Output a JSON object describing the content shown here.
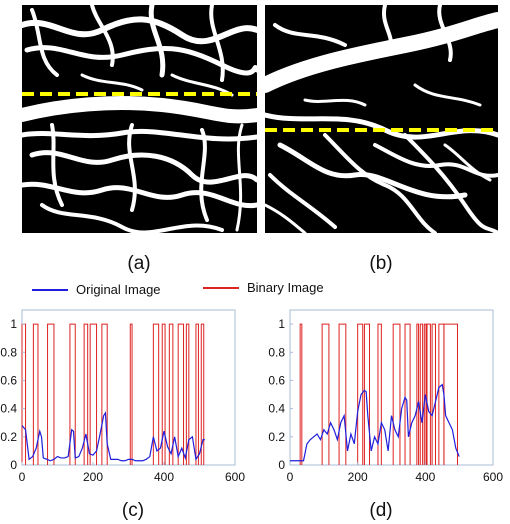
{
  "captions": {
    "a": "(a)",
    "b": "(b)",
    "c": "(c)",
    "d": "(d)"
  },
  "legend": {
    "original": {
      "label": "Original Image",
      "color": "#1f1fdd"
    },
    "binary": {
      "label": "Binary Image",
      "color": "#dd2222"
    }
  },
  "marker_color": "#ffff00",
  "chart_data": [
    {
      "type": "line",
      "xlim": [
        0,
        600
      ],
      "ylim": [
        0,
        1.1
      ],
      "xticks": [
        0,
        200,
        400,
        600
      ],
      "yticks": [
        0,
        0.2,
        0.4,
        0.6,
        0.8,
        1
      ],
      "grid": false,
      "series": [
        {
          "name": "Original Image",
          "x": [
            0,
            10,
            20,
            30,
            40,
            50,
            55,
            60,
            70,
            80,
            90,
            100,
            110,
            120,
            130,
            140,
            145,
            150,
            160,
            170,
            180,
            190,
            200,
            210,
            220,
            230,
            235,
            240,
            250,
            260,
            270,
            280,
            290,
            300,
            310,
            320,
            330,
            340,
            350,
            360,
            370,
            380,
            390,
            400,
            410,
            420,
            430,
            440,
            450,
            460,
            470,
            480,
            490,
            500,
            510,
            515
          ],
          "y": [
            0.28,
            0.25,
            0.04,
            0.06,
            0.12,
            0.24,
            0.2,
            0.05,
            0.04,
            0.03,
            0.04,
            0.06,
            0.05,
            0.05,
            0.06,
            0.25,
            0.24,
            0.05,
            0.06,
            0.12,
            0.22,
            0.08,
            0.07,
            0.1,
            0.22,
            0.35,
            0.37,
            0.15,
            0.04,
            0.04,
            0.04,
            0.03,
            0.03,
            0.04,
            0.04,
            0.03,
            0.03,
            0.03,
            0.04,
            0.06,
            0.2,
            0.1,
            0.12,
            0.24,
            0.13,
            0.08,
            0.2,
            0.06,
            0.12,
            0.05,
            0.18,
            0.2,
            0.04,
            0.08,
            0.18,
            0.18
          ]
        },
        {
          "name": "Binary Image",
          "pulses": [
            [
              0,
              10
            ],
            [
              32,
              45
            ],
            [
              72,
              90
            ],
            [
              135,
              150
            ],
            [
              175,
              185
            ],
            [
              192,
              210
            ],
            [
              225,
              240
            ],
            [
              305,
              310
            ],
            [
              370,
              385
            ],
            [
              395,
              403
            ],
            [
              415,
              425
            ],
            [
              440,
              455
            ],
            [
              463,
              470
            ],
            [
              490,
              497
            ],
            [
              505,
              512
            ]
          ]
        }
      ]
    },
    {
      "type": "line",
      "xlim": [
        0,
        600
      ],
      "ylim": [
        0,
        1.1
      ],
      "xticks": [
        0,
        200,
        400,
        600
      ],
      "yticks": [
        0,
        0.2,
        0.4,
        0.6,
        0.8,
        1
      ],
      "grid": false,
      "series": [
        {
          "name": "Original Image",
          "x": [
            0,
            20,
            40,
            50,
            60,
            70,
            80,
            90,
            100,
            110,
            120,
            130,
            140,
            150,
            160,
            170,
            180,
            190,
            200,
            210,
            220,
            225,
            230,
            240,
            250,
            260,
            270,
            280,
            290,
            300,
            310,
            320,
            330,
            340,
            345,
            350,
            360,
            370,
            380,
            390,
            400,
            410,
            420,
            430,
            440,
            450,
            455,
            460,
            470,
            480,
            490,
            500
          ],
          "y": [
            0.03,
            0.03,
            0.03,
            0.15,
            0.18,
            0.2,
            0.22,
            0.18,
            0.25,
            0.22,
            0.3,
            0.25,
            0.18,
            0.3,
            0.35,
            0.1,
            0.22,
            0.15,
            0.38,
            0.5,
            0.53,
            0.52,
            0.35,
            0.1,
            0.2,
            0.15,
            0.3,
            0.25,
            0.1,
            0.35,
            0.25,
            0.2,
            0.4,
            0.48,
            0.46,
            0.2,
            0.3,
            0.35,
            0.45,
            0.3,
            0.5,
            0.38,
            0.35,
            0.45,
            0.55,
            0.57,
            0.5,
            0.35,
            0.3,
            0.25,
            0.12,
            0.06
          ]
        },
        {
          "name": "Binary Image",
          "pulses": [
            [
              30,
              35
            ],
            [
              95,
              115
            ],
            [
              145,
              165
            ],
            [
              200,
              215
            ],
            [
              220,
              235
            ],
            [
              260,
              270
            ],
            [
              305,
              325
            ],
            [
              340,
              355
            ],
            [
              375,
              380
            ],
            [
              385,
              392
            ],
            [
              397,
              402
            ],
            [
              405,
              415
            ],
            [
              420,
              430
            ],
            [
              440,
              455
            ],
            [
              455,
              495
            ]
          ]
        }
      ]
    }
  ]
}
